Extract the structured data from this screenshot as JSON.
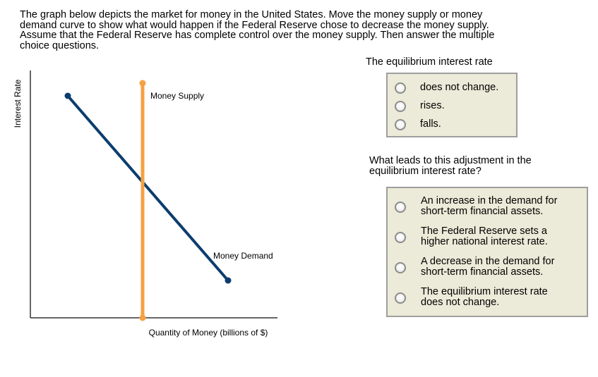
{
  "intro": {
    "lines": [
      "The graph below depicts the market for money in the United States. Move the money supply or money",
      "demand curve to show what would happen if the Federal Reserve chose to decrease the money supply.",
      "Assume that the Federal Reserve has complete control over the money supply. Then answer the multiple",
      "choice questions."
    ]
  },
  "graph": {
    "ylabel": "Interest Rate",
    "xlabel": "Quantity of Money (billions of $)",
    "colors": {
      "supply": "#f4a142",
      "demand": "#0c3d6e",
      "axis": "#333333"
    },
    "supply": {
      "label": "Money Supply",
      "draggable": true
    },
    "demand": {
      "label": "Money Demand",
      "draggable": true
    }
  },
  "question1": {
    "title": "The equilibrium interest rate",
    "options": [
      {
        "lines": [
          "does not change."
        ],
        "selected": false
      },
      {
        "lines": [
          "rises."
        ],
        "selected": false
      },
      {
        "lines": [
          "falls."
        ],
        "selected": false
      }
    ]
  },
  "question2": {
    "title_lines": [
      "What leads to this adjustment in the",
      "equilibrium interest rate?"
    ],
    "options": [
      {
        "lines": [
          "An increase in the demand for",
          "short-term financial assets."
        ],
        "selected": false
      },
      {
        "lines": [
          "The Federal Reserve sets a",
          "higher national interest rate."
        ],
        "selected": false
      },
      {
        "lines": [
          "A decrease in the demand for",
          "short-term financial assets."
        ],
        "selected": false
      },
      {
        "lines": [
          "The equilibrium interest rate",
          "does not change."
        ],
        "selected": false
      }
    ]
  }
}
